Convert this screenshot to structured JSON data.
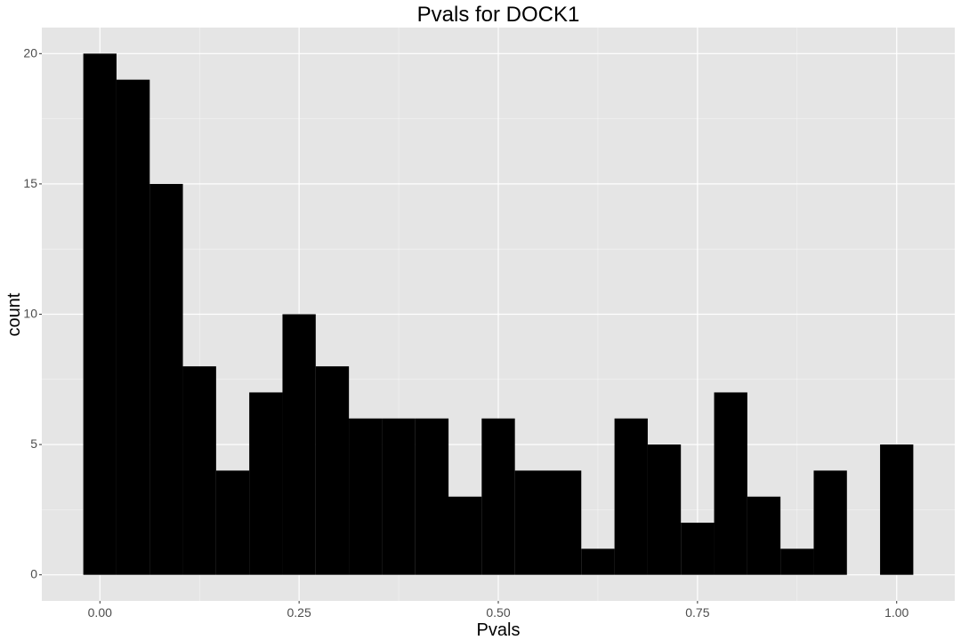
{
  "chart_data": {
    "type": "bar",
    "title": "Pvals for DOCK1",
    "xlabel": "Pvals",
    "ylabel": "count",
    "bin_width": 0.0417,
    "bins": [
      {
        "x": 0.0,
        "count": 20
      },
      {
        "x": 0.0417,
        "count": 19
      },
      {
        "x": 0.0833,
        "count": 15
      },
      {
        "x": 0.125,
        "count": 8
      },
      {
        "x": 0.1667,
        "count": 4
      },
      {
        "x": 0.2083,
        "count": 7
      },
      {
        "x": 0.25,
        "count": 10
      },
      {
        "x": 0.2917,
        "count": 8
      },
      {
        "x": 0.3333,
        "count": 6
      },
      {
        "x": 0.375,
        "count": 6
      },
      {
        "x": 0.4167,
        "count": 6
      },
      {
        "x": 0.4583,
        "count": 3
      },
      {
        "x": 0.5,
        "count": 6
      },
      {
        "x": 0.5417,
        "count": 4
      },
      {
        "x": 0.5833,
        "count": 4
      },
      {
        "x": 0.625,
        "count": 1
      },
      {
        "x": 0.6667,
        "count": 6
      },
      {
        "x": 0.7083,
        "count": 5
      },
      {
        "x": 0.75,
        "count": 2
      },
      {
        "x": 0.7917,
        "count": 7
      },
      {
        "x": 0.8333,
        "count": 3
      },
      {
        "x": 0.875,
        "count": 1
      },
      {
        "x": 0.9167,
        "count": 4
      },
      {
        "x": 0.9583,
        "count": 0
      },
      {
        "x": 1.0,
        "count": 5
      }
    ],
    "x_ticks": [
      "0.00",
      "0.25",
      "0.50",
      "0.75",
      "1.00"
    ],
    "x_tick_values": [
      0.0,
      0.25,
      0.5,
      0.75,
      1.0
    ],
    "y_ticks": [
      "0",
      "5",
      "10",
      "15",
      "20"
    ],
    "y_tick_values": [
      0,
      5,
      10,
      15,
      20
    ],
    "xlim": [
      -0.0729,
      1.0729
    ],
    "ylim": [
      -1.0,
      21.0
    ],
    "grid": true,
    "colors": {
      "panel": "#e5e5e5",
      "grid": "#ffffff",
      "bar": "#000000"
    }
  }
}
